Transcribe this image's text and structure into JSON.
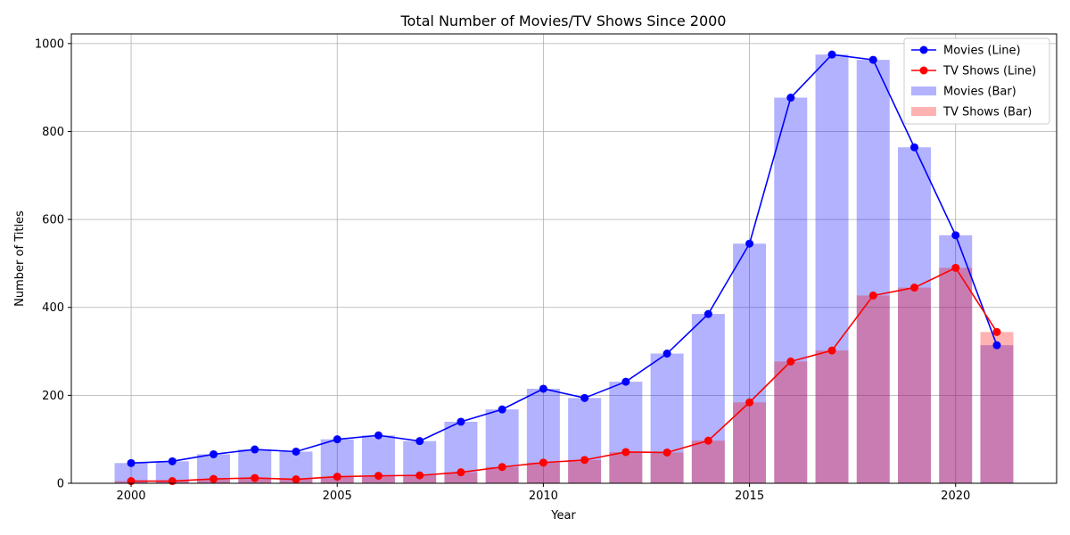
{
  "chart_data": {
    "type": "bar",
    "title": "Total Number of Movies/TV Shows Since 2000",
    "xlabel": "Year",
    "ylabel": "Number of Titles",
    "x": [
      2000,
      2001,
      2002,
      2003,
      2004,
      2005,
      2006,
      2007,
      2008,
      2009,
      2010,
      2011,
      2012,
      2013,
      2014,
      2015,
      2016,
      2017,
      2018,
      2019,
      2020,
      2021
    ],
    "xlim": [
      1998.55,
      2022.45
    ],
    "ylim": [
      0,
      1022
    ],
    "xticks": [
      2000,
      2005,
      2010,
      2015,
      2020
    ],
    "yticks": [
      0,
      200,
      400,
      600,
      800,
      1000
    ],
    "grid": true,
    "legend_position": "top-right",
    "series": [
      {
        "name": "Movies (Line)",
        "kind": "line",
        "color": "#0000ff",
        "values": [
          46,
          50,
          66,
          77,
          72,
          100,
          109,
          96,
          140,
          168,
          215,
          194,
          231,
          295,
          385,
          545,
          877,
          975,
          963,
          764,
          564,
          314
        ]
      },
      {
        "name": "TV Shows (Line)",
        "kind": "line",
        "color": "#ff0000",
        "values": [
          5,
          5,
          10,
          12,
          9,
          15,
          17,
          18,
          25,
          37,
          47,
          53,
          71,
          70,
          97,
          184,
          277,
          302,
          427,
          445,
          490,
          344
        ]
      },
      {
        "name": "Movies (Bar)",
        "kind": "bar",
        "color": "#0000ff",
        "opacity": 0.3,
        "values": [
          46,
          50,
          66,
          77,
          72,
          100,
          109,
          96,
          140,
          168,
          215,
          194,
          231,
          295,
          385,
          545,
          877,
          975,
          963,
          764,
          564,
          314
        ]
      },
      {
        "name": "TV Shows (Bar)",
        "kind": "bar",
        "color": "#ff0000",
        "opacity": 0.3,
        "values": [
          5,
          5,
          10,
          12,
          9,
          15,
          17,
          18,
          25,
          37,
          47,
          53,
          71,
          70,
          97,
          184,
          277,
          302,
          427,
          445,
          490,
          344
        ]
      }
    ]
  }
}
